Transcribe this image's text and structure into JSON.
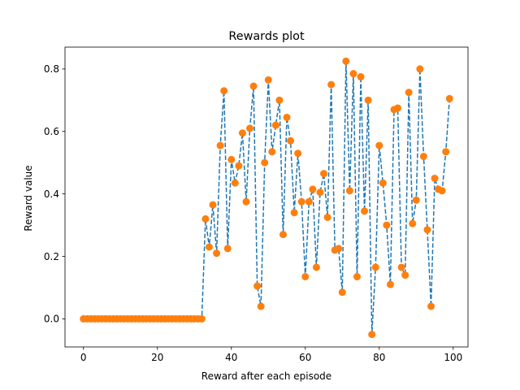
{
  "chart_data": {
    "type": "line",
    "title": "Rewards plot",
    "xlabel": "Reward after each episode",
    "ylabel": "Reward value",
    "xlim": [
      -5,
      104
    ],
    "ylim": [
      -0.09,
      0.87
    ],
    "xticks": [
      0,
      20,
      40,
      60,
      80,
      100
    ],
    "yticks": [
      0.0,
      0.2,
      0.4,
      0.6,
      0.8
    ],
    "ytick_labels": [
      "0.0",
      "0.2",
      "0.4",
      "0.6",
      "0.8"
    ],
    "grid": false,
    "line_style": "dashed",
    "line_color": "#1f77b4",
    "marker_color": "#ff7f0e",
    "x": [
      0,
      1,
      2,
      3,
      4,
      5,
      6,
      7,
      8,
      9,
      10,
      11,
      12,
      13,
      14,
      15,
      16,
      17,
      18,
      19,
      20,
      21,
      22,
      23,
      24,
      25,
      26,
      27,
      28,
      29,
      30,
      31,
      32,
      33,
      34,
      35,
      36,
      37,
      38,
      39,
      40,
      41,
      42,
      43,
      44,
      45,
      46,
      47,
      48,
      49,
      50,
      51,
      52,
      53,
      54,
      55,
      56,
      57,
      58,
      59,
      60,
      61,
      62,
      63,
      64,
      65,
      66,
      67,
      68,
      69,
      70,
      71,
      72,
      73,
      74,
      75,
      76,
      77,
      78,
      79,
      80,
      81,
      82,
      83,
      84,
      85,
      86,
      87,
      88,
      89,
      90,
      91,
      92,
      93,
      94,
      95,
      96,
      97,
      98,
      99
    ],
    "y": [
      0,
      0,
      0,
      0,
      0,
      0,
      0,
      0,
      0,
      0,
      0,
      0,
      0,
      0,
      0,
      0,
      0,
      0,
      0,
      0,
      0,
      0,
      0,
      0,
      0,
      0,
      0,
      0,
      0,
      0,
      0,
      0,
      0,
      0.32,
      0.23,
      0.365,
      0.21,
      0.555,
      0.73,
      0.225,
      0.51,
      0.435,
      0.49,
      0.595,
      0.375,
      0.61,
      0.745,
      0.105,
      0.04,
      0.5,
      0.765,
      0.535,
      0.62,
      0.7,
      0.27,
      0.645,
      0.57,
      0.34,
      0.53,
      0.375,
      0.135,
      0.375,
      0.415,
      0.165,
      0.405,
      0.465,
      0.325,
      0.75,
      0.22,
      0.225,
      0.085,
      0.825,
      0.41,
      0.785,
      0.135,
      0.775,
      0.345,
      0.7,
      -0.05,
      0.165,
      0.555,
      0.435,
      0.3,
      0.11,
      0.67,
      0.675,
      0.165,
      0.14,
      0.725,
      0.305,
      0.38,
      0.8,
      0.52,
      0.285,
      0.04,
      0.45,
      0.415,
      0.41,
      0.535,
      0.705
    ]
  }
}
